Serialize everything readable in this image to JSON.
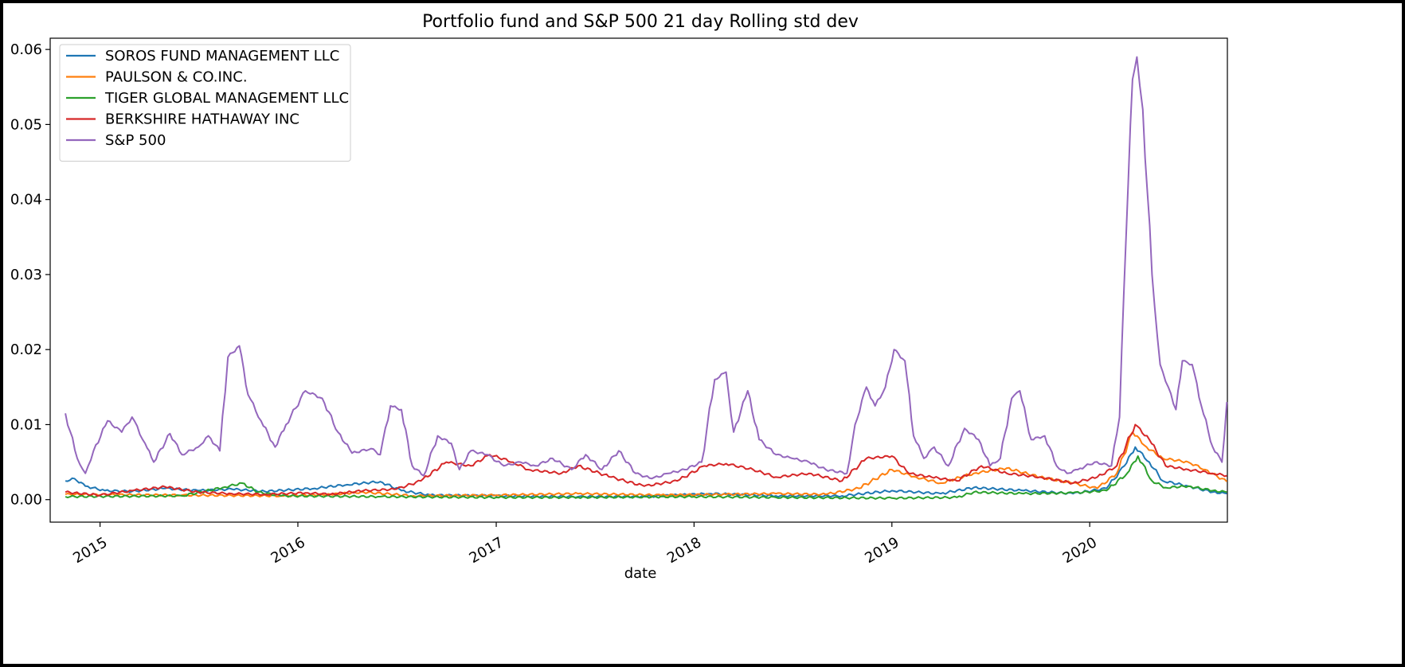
{
  "chart_data": {
    "type": "line",
    "title": "Portfolio fund and S&P 500 21 day Rolling std dev",
    "xlabel": "date",
    "ylabel": "",
    "x_range": [
      "2014-10-01",
      "2020-09-11"
    ],
    "ylim": [
      -0.003,
      0.0615
    ],
    "yticks": [
      0.0,
      0.01,
      0.02,
      0.03,
      0.04,
      0.05,
      0.06
    ],
    "ytick_labels": [
      "0.00",
      "0.01",
      "0.02",
      "0.03",
      "0.04",
      "0.05",
      "0.06"
    ],
    "xticks": [
      "2015-01-01",
      "2016-01-01",
      "2017-01-01",
      "2018-01-01",
      "2019-01-01",
      "2020-01-01"
    ],
    "xtick_labels": [
      "2015",
      "2016",
      "2017",
      "2018",
      "2019",
      "2020"
    ],
    "grid": false,
    "legend_position": "top-left",
    "series": [
      {
        "name": "SOROS FUND MANAGEMENT LLC",
        "color": "#1f77b4",
        "points": [
          [
            "2014-10-29",
            0.0025
          ],
          [
            "2014-11-15",
            0.0028
          ],
          [
            "2014-12-05",
            0.0018
          ],
          [
            "2015-01-10",
            0.0012
          ],
          [
            "2015-03-01",
            0.0011
          ],
          [
            "2015-05-01",
            0.0015
          ],
          [
            "2015-07-01",
            0.0012
          ],
          [
            "2015-09-01",
            0.0014
          ],
          [
            "2015-11-01",
            0.0011
          ],
          [
            "2016-02-01",
            0.0015
          ],
          [
            "2016-04-01",
            0.002
          ],
          [
            "2016-06-01",
            0.0024
          ],
          [
            "2016-07-10",
            0.0012
          ],
          [
            "2016-09-01",
            0.0006
          ],
          [
            "2017-01-01",
            0.0005
          ],
          [
            "2017-06-01",
            0.0004
          ],
          [
            "2017-10-01",
            0.0004
          ],
          [
            "2018-02-01",
            0.0008
          ],
          [
            "2018-06-01",
            0.0005
          ],
          [
            "2018-10-01",
            0.0005
          ],
          [
            "2019-01-01",
            0.0012
          ],
          [
            "2019-04-01",
            0.0008
          ],
          [
            "2019-06-01",
            0.0016
          ],
          [
            "2019-09-01",
            0.0012
          ],
          [
            "2019-12-01",
            0.0008
          ],
          [
            "2020-02-01",
            0.0015
          ],
          [
            "2020-03-05",
            0.0045
          ],
          [
            "2020-03-25",
            0.007
          ],
          [
            "2020-04-20",
            0.005
          ],
          [
            "2020-05-15",
            0.0025
          ],
          [
            "2020-07-01",
            0.0018
          ],
          [
            "2020-08-15",
            0.001
          ],
          [
            "2020-09-10",
            0.0008
          ]
        ]
      },
      {
        "name": "PAULSON & CO.INC.",
        "color": "#ff7f0e",
        "points": [
          [
            "2014-10-29",
            0.0007
          ],
          [
            "2015-06-01",
            0.0006
          ],
          [
            "2015-12-01",
            0.0005
          ],
          [
            "2016-03-01",
            0.0007
          ],
          [
            "2016-05-01",
            0.001
          ],
          [
            "2016-08-01",
            0.0005
          ],
          [
            "2017-01-01",
            0.0006
          ],
          [
            "2017-06-01",
            0.0008
          ],
          [
            "2017-11-01",
            0.0006
          ],
          [
            "2018-03-01",
            0.0007
          ],
          [
            "2018-06-01",
            0.0008
          ],
          [
            "2018-09-01",
            0.0007
          ],
          [
            "2018-11-01",
            0.0015
          ],
          [
            "2019-01-01",
            0.004
          ],
          [
            "2019-02-15",
            0.003
          ],
          [
            "2019-04-01",
            0.0022
          ],
          [
            "2019-06-01",
            0.0035
          ],
          [
            "2019-08-01",
            0.0042
          ],
          [
            "2019-10-01",
            0.003
          ],
          [
            "2019-12-01",
            0.0022
          ],
          [
            "2020-01-15",
            0.0015
          ],
          [
            "2020-02-20",
            0.0035
          ],
          [
            "2020-03-20",
            0.009
          ],
          [
            "2020-04-15",
            0.007
          ],
          [
            "2020-05-15",
            0.0055
          ],
          [
            "2020-07-01",
            0.005
          ],
          [
            "2020-08-01",
            0.004
          ],
          [
            "2020-09-10",
            0.0024
          ]
        ]
      },
      {
        "name": "TIGER GLOBAL MANAGEMENT LLC",
        "color": "#2ca02c",
        "points": [
          [
            "2014-10-29",
            0.0004
          ],
          [
            "2015-06-01",
            0.0005
          ],
          [
            "2015-08-15",
            0.0016
          ],
          [
            "2015-09-20",
            0.0022
          ],
          [
            "2015-10-20",
            0.001
          ],
          [
            "2015-12-01",
            0.0005
          ],
          [
            "2016-06-01",
            0.0004
          ],
          [
            "2017-01-01",
            0.0003
          ],
          [
            "2017-06-01",
            0.0003
          ],
          [
            "2018-01-01",
            0.0004
          ],
          [
            "2018-06-01",
            0.0003
          ],
          [
            "2019-01-01",
            0.0002
          ],
          [
            "2019-05-01",
            0.0003
          ],
          [
            "2019-06-01",
            0.001
          ],
          [
            "2019-09-01",
            0.0008
          ],
          [
            "2019-12-01",
            0.0009
          ],
          [
            "2020-02-01",
            0.0012
          ],
          [
            "2020-03-10",
            0.0035
          ],
          [
            "2020-03-30",
            0.0058
          ],
          [
            "2020-04-25",
            0.0025
          ],
          [
            "2020-05-20",
            0.0016
          ],
          [
            "2020-07-01",
            0.0018
          ],
          [
            "2020-08-15",
            0.0012
          ],
          [
            "2020-09-10",
            0.001
          ]
        ]
      },
      {
        "name": "BERKSHIRE HATHAWAY INC",
        "color": "#d62728",
        "points": [
          [
            "2014-10-29",
            0.001
          ],
          [
            "2015-01-01",
            0.0006
          ],
          [
            "2015-03-01",
            0.0012
          ],
          [
            "2015-05-01",
            0.0017
          ],
          [
            "2015-07-01",
            0.001
          ],
          [
            "2015-09-01",
            0.0008
          ],
          [
            "2015-11-01",
            0.0007
          ],
          [
            "2016-01-15",
            0.0009
          ],
          [
            "2016-03-01",
            0.0007
          ],
          [
            "2016-05-01",
            0.0012
          ],
          [
            "2016-07-01",
            0.0014
          ],
          [
            "2016-08-15",
            0.0025
          ],
          [
            "2016-10-01",
            0.005
          ],
          [
            "2016-11-15",
            0.0045
          ],
          [
            "2016-12-20",
            0.006
          ],
          [
            "2017-02-01",
            0.005
          ],
          [
            "2017-03-01",
            0.004
          ],
          [
            "2017-05-01",
            0.0035
          ],
          [
            "2017-06-01",
            0.0045
          ],
          [
            "2017-08-01",
            0.003
          ],
          [
            "2017-10-01",
            0.0018
          ],
          [
            "2017-12-01",
            0.0025
          ],
          [
            "2018-01-20",
            0.0045
          ],
          [
            "2018-03-01",
            0.0048
          ],
          [
            "2018-04-20",
            0.004
          ],
          [
            "2018-06-01",
            0.003
          ],
          [
            "2018-08-01",
            0.0035
          ],
          [
            "2018-10-01",
            0.0025
          ],
          [
            "2018-11-15",
            0.0055
          ],
          [
            "2019-01-01",
            0.0058
          ],
          [
            "2019-02-01",
            0.0035
          ],
          [
            "2019-03-15",
            0.003
          ],
          [
            "2019-05-01",
            0.0025
          ],
          [
            "2019-06-15",
            0.0045
          ],
          [
            "2019-08-01",
            0.0035
          ],
          [
            "2019-10-01",
            0.003
          ],
          [
            "2019-12-01",
            0.0022
          ],
          [
            "2020-01-15",
            0.003
          ],
          [
            "2020-02-20",
            0.0045
          ],
          [
            "2020-03-25",
            0.01
          ],
          [
            "2020-04-20",
            0.008
          ],
          [
            "2020-05-20",
            0.0045
          ],
          [
            "2020-07-01",
            0.004
          ],
          [
            "2020-08-15",
            0.0035
          ],
          [
            "2020-09-10",
            0.0032
          ]
        ]
      },
      {
        "name": "S&P 500",
        "color": "#9467bd",
        "points": [
          [
            "2014-10-29",
            0.0115
          ],
          [
            "2014-11-20",
            0.0055
          ],
          [
            "2014-12-05",
            0.0035
          ],
          [
            "2014-12-20",
            0.0065
          ],
          [
            "2015-01-15",
            0.0105
          ],
          [
            "2015-02-10",
            0.009
          ],
          [
            "2015-03-01",
            0.011
          ],
          [
            "2015-03-25",
            0.0075
          ],
          [
            "2015-04-10",
            0.005
          ],
          [
            "2015-05-10",
            0.0088
          ],
          [
            "2015-06-01",
            0.006
          ],
          [
            "2015-07-01",
            0.007
          ],
          [
            "2015-07-20",
            0.0085
          ],
          [
            "2015-08-10",
            0.0065
          ],
          [
            "2015-08-25",
            0.019
          ],
          [
            "2015-09-15",
            0.0205
          ],
          [
            "2015-10-01",
            0.014
          ],
          [
            "2015-10-25",
            0.0105
          ],
          [
            "2015-11-20",
            0.007
          ],
          [
            "2015-12-10",
            0.01
          ],
          [
            "2016-01-15",
            0.0145
          ],
          [
            "2016-02-15",
            0.0135
          ],
          [
            "2016-03-15",
            0.009
          ],
          [
            "2016-04-10",
            0.0062
          ],
          [
            "2016-05-15",
            0.0068
          ],
          [
            "2016-06-01",
            0.006
          ],
          [
            "2016-06-20",
            0.0125
          ],
          [
            "2016-07-10",
            0.012
          ],
          [
            "2016-07-30",
            0.0045
          ],
          [
            "2016-08-20",
            0.0032
          ],
          [
            "2016-09-15",
            0.0085
          ],
          [
            "2016-10-10",
            0.0075
          ],
          [
            "2016-10-25",
            0.004
          ],
          [
            "2016-11-15",
            0.0065
          ],
          [
            "2016-12-15",
            0.006
          ],
          [
            "2017-01-15",
            0.0045
          ],
          [
            "2017-02-15",
            0.005
          ],
          [
            "2017-03-15",
            0.0045
          ],
          [
            "2017-04-15",
            0.0055
          ],
          [
            "2017-05-20",
            0.004
          ],
          [
            "2017-06-15",
            0.006
          ],
          [
            "2017-07-15",
            0.004
          ],
          [
            "2017-08-15",
            0.0065
          ],
          [
            "2017-09-15",
            0.0035
          ],
          [
            "2017-10-15",
            0.0028
          ],
          [
            "2017-11-15",
            0.0035
          ],
          [
            "2017-12-15",
            0.004
          ],
          [
            "2018-01-15",
            0.005
          ],
          [
            "2018-02-08",
            0.016
          ],
          [
            "2018-03-01",
            0.017
          ],
          [
            "2018-03-15",
            0.009
          ],
          [
            "2018-04-10",
            0.0145
          ],
          [
            "2018-05-01",
            0.008
          ],
          [
            "2018-06-01",
            0.006
          ],
          [
            "2018-07-01",
            0.0055
          ],
          [
            "2018-08-01",
            0.005
          ],
          [
            "2018-09-01",
            0.004
          ],
          [
            "2018-10-10",
            0.0035
          ],
          [
            "2018-10-25",
            0.01
          ],
          [
            "2018-11-15",
            0.015
          ],
          [
            "2018-12-01",
            0.0125
          ],
          [
            "2018-12-20",
            0.015
          ],
          [
            "2019-01-05",
            0.02
          ],
          [
            "2019-01-25",
            0.0185
          ],
          [
            "2019-02-10",
            0.0085
          ],
          [
            "2019-03-01",
            0.0055
          ],
          [
            "2019-03-20",
            0.007
          ],
          [
            "2019-04-15",
            0.0045
          ],
          [
            "2019-05-15",
            0.0095
          ],
          [
            "2019-06-10",
            0.008
          ],
          [
            "2019-07-01",
            0.0045
          ],
          [
            "2019-07-20",
            0.0055
          ],
          [
            "2019-08-10",
            0.0135
          ],
          [
            "2019-08-25",
            0.0145
          ],
          [
            "2019-09-15",
            0.008
          ],
          [
            "2019-10-10",
            0.0085
          ],
          [
            "2019-11-01",
            0.0045
          ],
          [
            "2019-11-20",
            0.0035
          ],
          [
            "2019-12-10",
            0.004
          ],
          [
            "2020-01-10",
            0.005
          ],
          [
            "2020-02-10",
            0.0045
          ],
          [
            "2020-02-25",
            0.011
          ],
          [
            "2020-03-08",
            0.035
          ],
          [
            "2020-03-20",
            0.056
          ],
          [
            "2020-03-28",
            0.059
          ],
          [
            "2020-04-08",
            0.052
          ],
          [
            "2020-04-25",
            0.03
          ],
          [
            "2020-05-10",
            0.018
          ],
          [
            "2020-05-25",
            0.015
          ],
          [
            "2020-06-08",
            0.012
          ],
          [
            "2020-06-20",
            0.0185
          ],
          [
            "2020-07-08",
            0.018
          ],
          [
            "2020-07-25",
            0.0125
          ],
          [
            "2020-08-15",
            0.007
          ],
          [
            "2020-09-01",
            0.005
          ],
          [
            "2020-09-10",
            0.013
          ]
        ]
      }
    ]
  }
}
